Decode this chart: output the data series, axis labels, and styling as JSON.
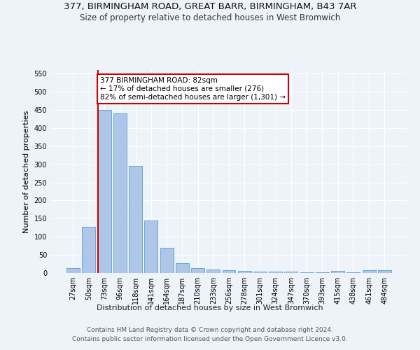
{
  "title_line1": "377, BIRMINGHAM ROAD, GREAT BARR, BIRMINGHAM, B43 7AR",
  "title_line2": "Size of property relative to detached houses in West Bromwich",
  "xlabel": "Distribution of detached houses by size in West Bromwich",
  "ylabel": "Number of detached properties",
  "categories": [
    "27sqm",
    "50sqm",
    "73sqm",
    "96sqm",
    "118sqm",
    "141sqm",
    "164sqm",
    "187sqm",
    "210sqm",
    "233sqm",
    "256sqm",
    "278sqm",
    "301sqm",
    "324sqm",
    "347sqm",
    "370sqm",
    "393sqm",
    "415sqm",
    "438sqm",
    "461sqm",
    "484sqm"
  ],
  "values": [
    13,
    127,
    450,
    440,
    295,
    145,
    70,
    27,
    13,
    10,
    7,
    6,
    4,
    3,
    3,
    2,
    2,
    5,
    2,
    7,
    7
  ],
  "bar_color": "#aec6e8",
  "bar_edge_color": "#5a9fd4",
  "vline_x_index": 2,
  "annotation_line1": "377 BIRMINGHAM ROAD: 82sqm",
  "annotation_line2": "← 17% of detached houses are smaller (276)",
  "annotation_line3": "82% of semi-detached houses are larger (1,301) →",
  "annotation_box_color": "#ffffff",
  "annotation_box_edge_color": "#cc0000",
  "vline_color": "#cc0000",
  "ylim": [
    0,
    560
  ],
  "yticks": [
    0,
    50,
    100,
    150,
    200,
    250,
    300,
    350,
    400,
    450,
    500,
    550
  ],
  "footer_line1": "Contains HM Land Registry data © Crown copyright and database right 2024.",
  "footer_line2": "Contains public sector information licensed under the Open Government Licence v3.0.",
  "bg_color": "#eef2f9",
  "grid_color": "#ffffff",
  "title_fontsize": 9.5,
  "subtitle_fontsize": 8.5,
  "axis_label_fontsize": 8,
  "tick_fontsize": 7,
  "annotation_fontsize": 7.5,
  "footer_fontsize": 6.5
}
